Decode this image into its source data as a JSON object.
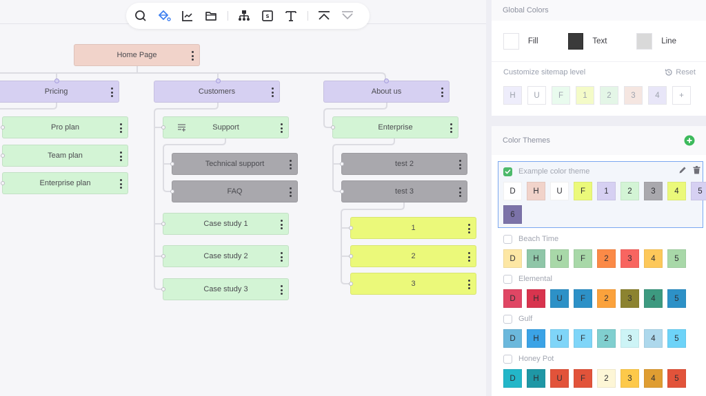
{
  "toolbar": {
    "icons": [
      "search-icon",
      "paint-bucket-icon",
      "chart-icon",
      "folder-icon",
      "sitemap-icon",
      "section-icon",
      "text-icon",
      "collapse-up-icon",
      "expand-down-icon"
    ],
    "active": "paint-bucket-icon",
    "active_color": "#3d7ff0"
  },
  "sitemap": {
    "home": {
      "label": "Home Page"
    },
    "level1": [
      {
        "label": "Pricing"
      },
      {
        "label": "Customers"
      },
      {
        "label": "About us"
      }
    ],
    "pricing_children": [
      {
        "label": "Pro plan"
      },
      {
        "label": "Team plan"
      },
      {
        "label": "Enterprise plan"
      }
    ],
    "customers_children": [
      {
        "label": "Support"
      },
      {
        "label": "Case study 1"
      },
      {
        "label": "Case study 2"
      },
      {
        "label": "Case study 3"
      }
    ],
    "support_children": [
      {
        "label": "Technical support"
      },
      {
        "label": "FAQ"
      }
    ],
    "about_children": [
      {
        "label": "Enterprise"
      }
    ],
    "enterprise_children": [
      {
        "label": "test 2"
      },
      {
        "label": "test 3"
      }
    ],
    "test3_children": [
      {
        "label": "1"
      },
      {
        "label": "2"
      },
      {
        "label": "3"
      }
    ],
    "colors": {
      "home": "#f1d3ca",
      "level1": "#d6d0f2",
      "level2": "#d3f4d5",
      "level3": "#a9a8ad",
      "level4": "#ebf97a"
    }
  },
  "panel": {
    "global_colors": {
      "title": "Global Colors",
      "fill_label": "Fill",
      "fill_color": "#ffffff",
      "text_label": "Text",
      "text_color": "#3a3a3a",
      "line_label": "Line",
      "line_color": "#d9d9d9"
    },
    "levels": {
      "title": "Customize sitemap level",
      "reset_label": "Reset",
      "swatches": [
        {
          "label": "H",
          "color": "#eeedfb"
        },
        {
          "label": "U",
          "color": "#ffffff"
        },
        {
          "label": "F",
          "color": "#e9fbee"
        },
        {
          "label": "1",
          "color": "#f4fbc8"
        },
        {
          "label": "2",
          "color": "#e4f6e7"
        },
        {
          "label": "3",
          "color": "#f5e6e1"
        },
        {
          "label": "4",
          "color": "#e8e6f8"
        },
        {
          "label": "+",
          "color": "#ffffff"
        }
      ]
    },
    "themes": {
      "title": "Color Themes",
      "add_color": "#3dba5c",
      "list": [
        {
          "name": "Example color theme",
          "selected": true,
          "swatches": [
            {
              "label": "D",
              "color": "#ffffff"
            },
            {
              "label": "H",
              "color": "#f1d3ca"
            },
            {
              "label": "U",
              "color": "#ffffff"
            },
            {
              "label": "F",
              "color": "#ebf97a"
            },
            {
              "label": "1",
              "color": "#d6d0f2"
            },
            {
              "label": "2",
              "color": "#d3f4d5"
            },
            {
              "label": "3",
              "color": "#a9a8ad"
            },
            {
              "label": "4",
              "color": "#ebf97a"
            },
            {
              "label": "5",
              "color": "#d6d0f2"
            },
            {
              "label": "6",
              "color": "#7b72a8"
            }
          ]
        },
        {
          "name": "Beach Time",
          "selected": false,
          "swatches": [
            {
              "label": "D",
              "color": "#fde7a4"
            },
            {
              "label": "H",
              "color": "#8fc6a8"
            },
            {
              "label": "U",
              "color": "#a8d8a8"
            },
            {
              "label": "F",
              "color": "#a8d8a8"
            },
            {
              "label": "2",
              "color": "#fb8a47"
            },
            {
              "label": "3",
              "color": "#f86560"
            },
            {
              "label": "4",
              "color": "#fdc85a"
            },
            {
              "label": "5",
              "color": "#a8d8a8"
            }
          ]
        },
        {
          "name": "Elemental",
          "selected": false,
          "swatches": [
            {
              "label": "D",
              "color": "#e04664"
            },
            {
              "label": "H",
              "color": "#d8344e"
            },
            {
              "label": "U",
              "color": "#2d91c7"
            },
            {
              "label": "F",
              "color": "#2d91c7"
            },
            {
              "label": "2",
              "color": "#fba23c"
            },
            {
              "label": "3",
              "color": "#8c8330"
            },
            {
              "label": "4",
              "color": "#3d9a80"
            },
            {
              "label": "5",
              "color": "#2d91c7"
            }
          ]
        },
        {
          "name": "Gulf",
          "selected": false,
          "swatches": [
            {
              "label": "D",
              "color": "#6bb8dc"
            },
            {
              "label": "H",
              "color": "#3ba3e6"
            },
            {
              "label": "U",
              "color": "#7fd5f8"
            },
            {
              "label": "F",
              "color": "#7fd5f8"
            },
            {
              "label": "2",
              "color": "#80cfcf"
            },
            {
              "label": "3",
              "color": "#cdf4f6"
            },
            {
              "label": "4",
              "color": "#add8ec"
            },
            {
              "label": "5",
              "color": "#6dd3f8"
            }
          ]
        },
        {
          "name": "Honey Pot",
          "selected": false,
          "swatches": [
            {
              "label": "D",
              "color": "#23b6c8"
            },
            {
              "label": "H",
              "color": "#1f97a5"
            },
            {
              "label": "U",
              "color": "#e2533a"
            },
            {
              "label": "F",
              "color": "#e2533a"
            },
            {
              "label": "2",
              "color": "#fdf6d6"
            },
            {
              "label": "3",
              "color": "#fdc94a"
            },
            {
              "label": "4",
              "color": "#df9d32"
            },
            {
              "label": "5",
              "color": "#e2533a"
            }
          ]
        }
      ]
    }
  }
}
